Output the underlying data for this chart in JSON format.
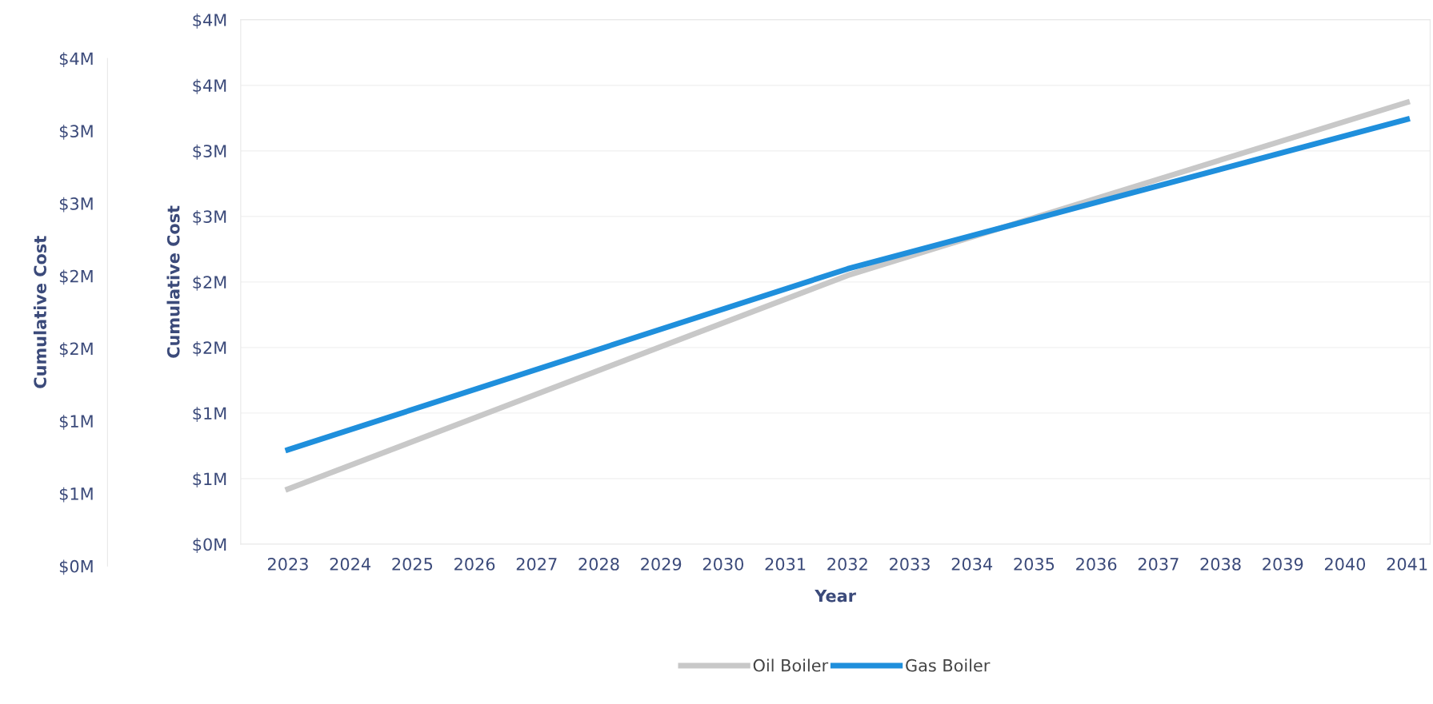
{
  "chart_data": {
    "type": "line",
    "xlabel": "Year",
    "ylabel": "Cumulative Cost",
    "y2label": "Cumulative Cost",
    "x": [
      2023,
      2032,
      2041
    ],
    "series": [
      {
        "name": "Oil Boiler",
        "color": "#c8c8c8",
        "values": [
          0.42,
          2.05,
          3.37
        ]
      },
      {
        "name": "Gas Boiler",
        "color": "#1f8fdc",
        "values": [
          0.72,
          2.1,
          3.24
        ]
      }
    ],
    "xlim": [
      2022.24,
      2041.37
    ],
    "xticks": [
      2023,
      2024,
      2025,
      2026,
      2027,
      2028,
      2029,
      2030,
      2031,
      2032,
      2033,
      2034,
      2035,
      2036,
      2037,
      2038,
      2039,
      2040,
      2041
    ],
    "ylim": [
      0,
      4
    ],
    "yticks": [
      {
        "value": 0,
        "label": "$0M"
      },
      {
        "value": 0.5,
        "label": "$1M"
      },
      {
        "value": 1,
        "label": "$1M"
      },
      {
        "value": 1.5,
        "label": "$2M"
      },
      {
        "value": 2,
        "label": "$2M"
      },
      {
        "value": 2.5,
        "label": "$3M"
      },
      {
        "value": 3,
        "label": "$3M"
      },
      {
        "value": 3.5,
        "label": "$4M"
      },
      {
        "value": 4,
        "label": "$4M"
      }
    ],
    "y2lim": [
      0,
      3.5
    ],
    "y2ticks": [
      {
        "value": 0,
        "label": "$0M"
      },
      {
        "value": 0.5,
        "label": "$1M"
      },
      {
        "value": 1,
        "label": "$1M"
      },
      {
        "value": 1.5,
        "label": "$2M"
      },
      {
        "value": 2,
        "label": "$2M"
      },
      {
        "value": 2.5,
        "label": "$3M"
      },
      {
        "value": 3,
        "label": "$3M"
      },
      {
        "value": 3.5,
        "label": "$4M"
      }
    ],
    "grid": "y",
    "legend": "bottom",
    "marker": "none",
    "line_style": "solid"
  }
}
